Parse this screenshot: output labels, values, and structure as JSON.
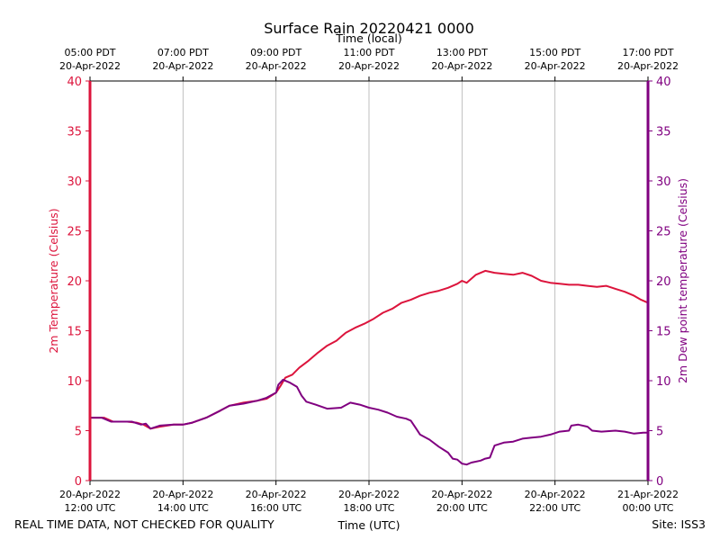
{
  "title": "Surface Rain 20220421 0000",
  "footer": {
    "left_note": "REAL TIME DATA, NOT CHECKED FOR QUALITY",
    "site": "Site: ISS3"
  },
  "colors": {
    "temperature": "#dc143c",
    "dewpoint": "#800080",
    "grid": "#b0b0b0",
    "axis": "#000000"
  },
  "chart_data": {
    "type": "line",
    "title": "Surface Rain 20220421 0000",
    "xlabel": "Time (UTC)",
    "x2label": "Time (local)",
    "ylabel": "2m Temperature (Celsius)",
    "y2label": "2m Dew point temperature (Celsius)",
    "x_unit": "hours since 20-Apr-2022 12:00 UTC",
    "xlim": [
      0,
      12
    ],
    "ylim": [
      0,
      40
    ],
    "y2lim": [
      0,
      40
    ],
    "y_ticks": [
      0,
      5,
      10,
      15,
      20,
      25,
      30,
      35,
      40
    ],
    "grid": "vertical",
    "bottom_ticks": [
      {
        "x": 0,
        "line1": "20-Apr-2022",
        "line2": "12:00 UTC"
      },
      {
        "x": 2,
        "line1": "20-Apr-2022",
        "line2": "14:00 UTC"
      },
      {
        "x": 4,
        "line1": "20-Apr-2022",
        "line2": "16:00 UTC"
      },
      {
        "x": 6,
        "line1": "20-Apr-2022",
        "line2": "18:00 UTC"
      },
      {
        "x": 8,
        "line1": "20-Apr-2022",
        "line2": "20:00 UTC"
      },
      {
        "x": 10,
        "line1": "20-Apr-2022",
        "line2": "22:00 UTC"
      },
      {
        "x": 12,
        "line1": "21-Apr-2022",
        "line2": "00:00 UTC"
      }
    ],
    "top_ticks": [
      {
        "x": 0,
        "line1": "05:00 PDT",
        "line2": "20-Apr-2022"
      },
      {
        "x": 2,
        "line1": "07:00 PDT",
        "line2": "20-Apr-2022"
      },
      {
        "x": 4,
        "line1": "09:00 PDT",
        "line2": "20-Apr-2022"
      },
      {
        "x": 6,
        "line1": "11:00 PDT",
        "line2": "20-Apr-2022"
      },
      {
        "x": 8,
        "line1": "13:00 PDT",
        "line2": "20-Apr-2022"
      },
      {
        "x": 10,
        "line1": "15:00 PDT",
        "line2": "20-Apr-2022"
      },
      {
        "x": 12,
        "line1": "17:00 PDT",
        "line2": "20-Apr-2022"
      }
    ],
    "series": [
      {
        "name": "2m Temperature",
        "axis": "left",
        "points": [
          [
            0.0,
            6.3
          ],
          [
            0.3,
            6.3
          ],
          [
            0.5,
            5.9
          ],
          [
            0.8,
            5.9
          ],
          [
            1.0,
            5.8
          ],
          [
            1.15,
            5.6
          ],
          [
            1.3,
            5.2
          ],
          [
            1.5,
            5.4
          ],
          [
            1.8,
            5.6
          ],
          [
            2.0,
            5.6
          ],
          [
            2.2,
            5.8
          ],
          [
            2.5,
            6.3
          ],
          [
            2.8,
            7.0
          ],
          [
            3.0,
            7.5
          ],
          [
            3.3,
            7.8
          ],
          [
            3.6,
            8.0
          ],
          [
            3.8,
            8.2
          ],
          [
            4.0,
            8.8
          ],
          [
            4.1,
            9.5
          ],
          [
            4.2,
            10.3
          ],
          [
            4.35,
            10.6
          ],
          [
            4.5,
            11.3
          ],
          [
            4.7,
            12.0
          ],
          [
            4.9,
            12.8
          ],
          [
            5.1,
            13.5
          ],
          [
            5.3,
            14.0
          ],
          [
            5.5,
            14.8
          ],
          [
            5.7,
            15.3
          ],
          [
            5.9,
            15.7
          ],
          [
            6.1,
            16.2
          ],
          [
            6.3,
            16.8
          ],
          [
            6.5,
            17.2
          ],
          [
            6.7,
            17.8
          ],
          [
            6.9,
            18.1
          ],
          [
            7.1,
            18.5
          ],
          [
            7.3,
            18.8
          ],
          [
            7.5,
            19.0
          ],
          [
            7.7,
            19.3
          ],
          [
            7.9,
            19.7
          ],
          [
            8.0,
            20.0
          ],
          [
            8.1,
            19.8
          ],
          [
            8.3,
            20.6
          ],
          [
            8.5,
            21.0
          ],
          [
            8.7,
            20.8
          ],
          [
            8.9,
            20.7
          ],
          [
            9.1,
            20.6
          ],
          [
            9.3,
            20.8
          ],
          [
            9.5,
            20.5
          ],
          [
            9.7,
            20.0
          ],
          [
            9.9,
            19.8
          ],
          [
            10.1,
            19.7
          ],
          [
            10.3,
            19.6
          ],
          [
            10.5,
            19.6
          ],
          [
            10.7,
            19.5
          ],
          [
            10.9,
            19.4
          ],
          [
            11.1,
            19.5
          ],
          [
            11.3,
            19.2
          ],
          [
            11.5,
            18.9
          ],
          [
            11.7,
            18.5
          ],
          [
            11.85,
            18.1
          ],
          [
            12.0,
            17.8
          ]
        ]
      },
      {
        "name": "2m Dew point temperature",
        "axis": "right",
        "points": [
          [
            0.0,
            6.3
          ],
          [
            0.25,
            6.3
          ],
          [
            0.45,
            5.9
          ],
          [
            0.7,
            5.9
          ],
          [
            0.9,
            5.9
          ],
          [
            1.1,
            5.6
          ],
          [
            1.2,
            5.7
          ],
          [
            1.3,
            5.2
          ],
          [
            1.5,
            5.5
          ],
          [
            1.8,
            5.6
          ],
          [
            2.0,
            5.6
          ],
          [
            2.2,
            5.8
          ],
          [
            2.5,
            6.3
          ],
          [
            2.8,
            7.0
          ],
          [
            3.0,
            7.5
          ],
          [
            3.3,
            7.7
          ],
          [
            3.6,
            8.0
          ],
          [
            3.8,
            8.3
          ],
          [
            4.0,
            8.8
          ],
          [
            4.05,
            9.6
          ],
          [
            4.15,
            10.1
          ],
          [
            4.3,
            9.8
          ],
          [
            4.45,
            9.4
          ],
          [
            4.55,
            8.5
          ],
          [
            4.65,
            7.9
          ],
          [
            4.85,
            7.6
          ],
          [
            5.1,
            7.2
          ],
          [
            5.4,
            7.3
          ],
          [
            5.6,
            7.8
          ],
          [
            5.8,
            7.6
          ],
          [
            6.0,
            7.3
          ],
          [
            6.2,
            7.1
          ],
          [
            6.4,
            6.8
          ],
          [
            6.6,
            6.4
          ],
          [
            6.8,
            6.2
          ],
          [
            6.9,
            6.0
          ],
          [
            7.0,
            5.3
          ],
          [
            7.1,
            4.6
          ],
          [
            7.3,
            4.1
          ],
          [
            7.5,
            3.4
          ],
          [
            7.7,
            2.8
          ],
          [
            7.8,
            2.2
          ],
          [
            7.9,
            2.1
          ],
          [
            8.0,
            1.7
          ],
          [
            8.1,
            1.6
          ],
          [
            8.2,
            1.8
          ],
          [
            8.4,
            2.0
          ],
          [
            8.5,
            2.2
          ],
          [
            8.6,
            2.3
          ],
          [
            8.7,
            3.5
          ],
          [
            8.9,
            3.8
          ],
          [
            9.1,
            3.9
          ],
          [
            9.3,
            4.2
          ],
          [
            9.5,
            4.3
          ],
          [
            9.7,
            4.4
          ],
          [
            9.9,
            4.6
          ],
          [
            10.1,
            4.9
          ],
          [
            10.3,
            5.0
          ],
          [
            10.35,
            5.5
          ],
          [
            10.5,
            5.6
          ],
          [
            10.7,
            5.4
          ],
          [
            10.8,
            5.0
          ],
          [
            11.0,
            4.9
          ],
          [
            11.3,
            5.0
          ],
          [
            11.5,
            4.9
          ],
          [
            11.7,
            4.7
          ],
          [
            11.9,
            4.8
          ],
          [
            12.0,
            4.8
          ]
        ]
      }
    ]
  }
}
